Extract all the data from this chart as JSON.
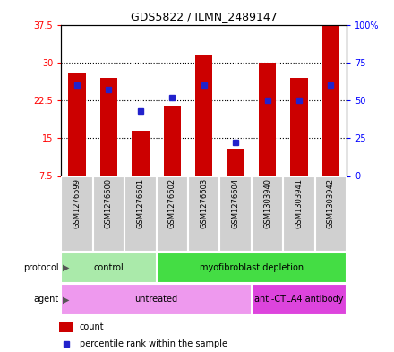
{
  "title": "GDS5822 / ILMN_2489147",
  "samples": [
    "GSM1276599",
    "GSM1276600",
    "GSM1276601",
    "GSM1276602",
    "GSM1276603",
    "GSM1276604",
    "GSM1303940",
    "GSM1303941",
    "GSM1303942"
  ],
  "counts": [
    28.0,
    27.0,
    16.5,
    21.5,
    31.5,
    13.0,
    30.0,
    27.0,
    37.2
  ],
  "percentile_ranks": [
    60,
    57,
    43,
    52,
    60,
    22,
    50,
    50,
    60
  ],
  "ymin": 7.5,
  "ymax": 37.5,
  "yticks": [
    7.5,
    15.0,
    22.5,
    30.0,
    37.5
  ],
  "ytick_labels": [
    "7.5",
    "15",
    "22.5",
    "30",
    "37.5"
  ],
  "y2ticks": [
    0,
    25,
    50,
    75,
    100
  ],
  "y2tick_labels": [
    "0",
    "25",
    "50",
    "75",
    "100%"
  ],
  "grid_lines": [
    15.0,
    22.5,
    30.0
  ],
  "protocol_groups": [
    {
      "label": "control",
      "start": 0,
      "end": 3,
      "color": "#aaeaaa"
    },
    {
      "label": "myofibroblast depletion",
      "start": 3,
      "end": 9,
      "color": "#44dd44"
    }
  ],
  "agent_groups": [
    {
      "label": "untreated",
      "start": 0,
      "end": 6,
      "color": "#ee99ee"
    },
    {
      "label": "anti-CTLA4 antibody",
      "start": 6,
      "end": 9,
      "color": "#dd44dd"
    }
  ],
  "bar_color": "#cc0000",
  "dot_color": "#2222cc",
  "bar_bottom": 7.5,
  "sample_box_color": "#d0d0d0",
  "legend_count_color": "#cc0000",
  "legend_dot_color": "#2222cc",
  "title_fontsize": 9,
  "tick_fontsize": 7,
  "label_fontsize": 7,
  "sample_fontsize": 6
}
